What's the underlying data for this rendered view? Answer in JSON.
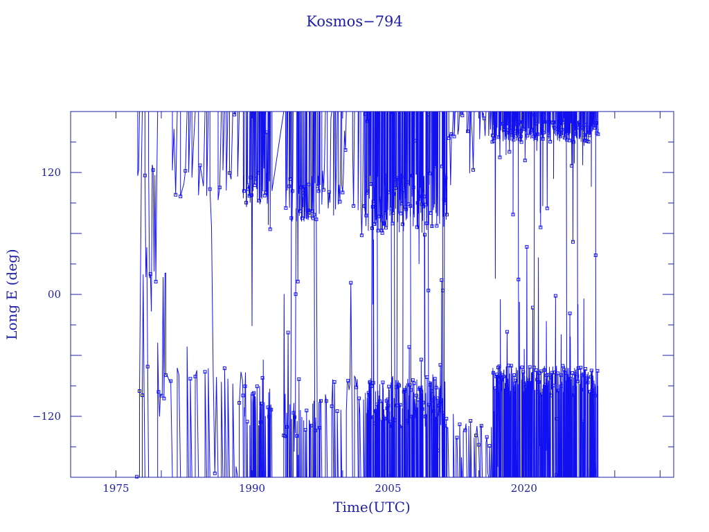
{
  "chart_data": {
    "type": "line",
    "title": "Kosmos−794",
    "xlabel": "Time(UTC)",
    "ylabel": "Long E (deg)",
    "xlim": [
      1970.0,
      2036.5
    ],
    "ylim": [
      -180,
      180
    ],
    "x_ticks": [
      1975,
      1990,
      2005,
      2020
    ],
    "x_tick_labels": [
      "1975",
      "1990",
      "2005",
      "2020"
    ],
    "y_ticks": [
      120,
      0,
      -120
    ],
    "y_tick_labels": [
      "120",
      "00",
      "−120"
    ],
    "grid": false,
    "legend": "none",
    "series_color": "#1010f0",
    "axis_color": "#1c1ca8",
    "marker": "square",
    "data_span": [
      1977.3,
      2028.2
    ],
    "phases": [
      {
        "start": 1977.3,
        "end": 1980.5,
        "bands": [
          [
            110,
            130
          ],
          [
            10,
            25
          ],
          [
            -105,
            -80
          ]
        ],
        "density": "medium"
      },
      {
        "start": 1980.5,
        "end": 1989.0,
        "bands": [
          [
            90,
            130
          ],
          [
            -90,
            -70
          ]
        ],
        "density": "low"
      },
      {
        "start": 1989.0,
        "end": 1992.2,
        "bands": [
          [
            85,
            120
          ],
          [
            -130,
            -90
          ]
        ],
        "density": "high"
      },
      {
        "start": 1992.2,
        "end": 1993.5,
        "bands": [],
        "density": "gap"
      },
      {
        "start": 1993.5,
        "end": 1997.5,
        "bands": [
          [
            70,
            120
          ],
          [
            -140,
            -100
          ]
        ],
        "density": "high"
      },
      {
        "start": 1997.5,
        "end": 2002.5,
        "bands": [
          [
            75,
            130
          ],
          [
            -120,
            -80
          ]
        ],
        "density": "medium"
      },
      {
        "start": 2002.5,
        "end": 2011.5,
        "bands": [
          [
            60,
            120
          ],
          [
            -130,
            -80
          ]
        ],
        "density": "very_high"
      },
      {
        "start": 2011.5,
        "end": 2016.5,
        "bands": [
          [
            150,
            180
          ],
          [
            -150,
            -120
          ]
        ],
        "density": "medium"
      },
      {
        "start": 2016.5,
        "end": 2028.2,
        "bands": [
          [
            150,
            170
          ],
          [
            -100,
            -70
          ]
        ],
        "density": "very_high"
      }
    ]
  }
}
